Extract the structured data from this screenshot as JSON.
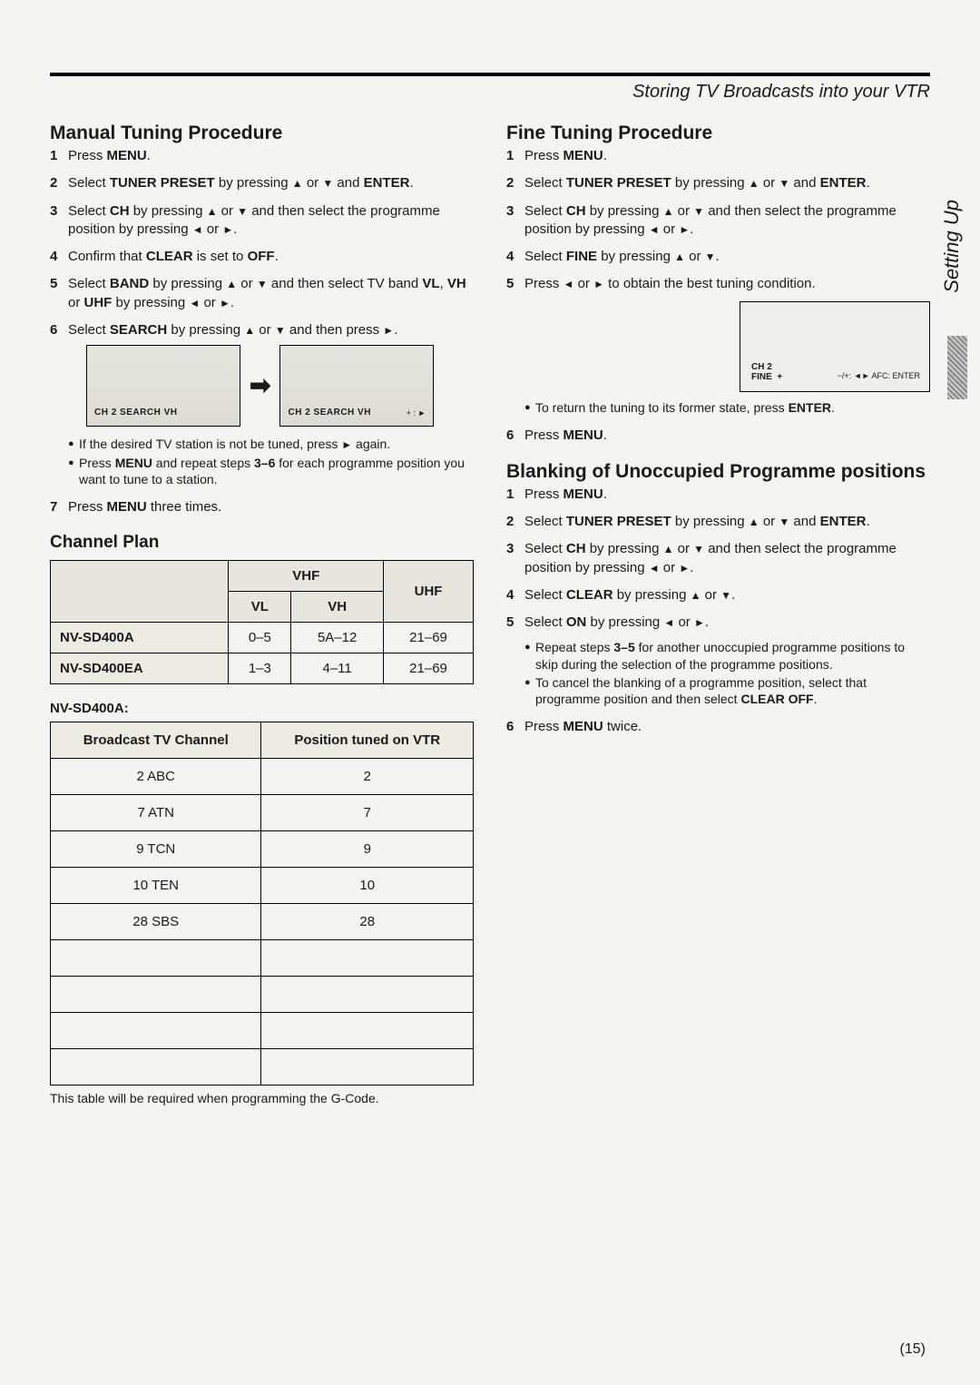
{
  "header": {
    "title": "Storing TV Broadcasts into your VTR"
  },
  "side_tab": "Setting Up",
  "page_number": "(15)",
  "left": {
    "manual": {
      "heading": "Manual Tuning Procedure",
      "steps": [
        "Press <b>MENU</b>.",
        "Select <b>TUNER PRESET</b> by pressing <span class='tri'>▲</span> or <span class='tri'>▼</span> and <b>ENTER</b>.",
        "Select <b>CH</b> by pressing <span class='tri'>▲</span> or <span class='tri'>▼</span> and then select the programme position by pressing <span class='tri'>◄</span> or <span class='tri'>►</span>.",
        "Confirm that <b>CLEAR</b> is set to <b>OFF</b>.",
        "Select <b>BAND</b> by pressing <span class='tri'>▲</span> or <span class='tri'>▼</span> and then select TV band <b>VL</b>, <b>VH</b> or <b>UHF</b> by pressing <span class='tri'>◄</span> or <span class='tri'>►</span>.",
        "Select <b>SEARCH</b> by pressing <span class='tri'>▲</span> or <span class='tri'>▼</span> and then press <span class='tri'>►</span>."
      ],
      "scr1": "CH 2   SEARCH  VH",
      "scr2_a": "CH 2   SEARCH  VH",
      "scr2_b": "+ : ►",
      "notes": [
        "If the desired TV station is not be tuned, press <span class='tri'>►</span> again.",
        "Press <b>MENU</b> and repeat steps <b>3–6</b> for each programme position you want to tune to a station."
      ],
      "step7": "Press <b>MENU</b> three times."
    },
    "channel_plan": {
      "heading": "Channel Plan",
      "headers": {
        "vhf": "VHF",
        "vl": "VL",
        "vh": "VH",
        "uhf": "UHF"
      },
      "rows": [
        {
          "model": "NV-SD400A",
          "vl": "0–5",
          "vh": "5A–12",
          "uhf": "21–69"
        },
        {
          "model": "NV-SD400EA",
          "vl": "1–3",
          "vh": "4–11",
          "uhf": "21–69"
        }
      ],
      "model_label": "NV-SD400A:",
      "bc_headers": {
        "a": "Broadcast TV Channel",
        "b": "Position tuned on VTR"
      },
      "bc_rows": [
        {
          "a": "2 ABC",
          "b": "2"
        },
        {
          "a": "7 ATN",
          "b": "7"
        },
        {
          "a": "9 TCN",
          "b": "9"
        },
        {
          "a": "10 TEN",
          "b": "10"
        },
        {
          "a": "28 SBS",
          "b": "28"
        },
        {
          "a": "",
          "b": ""
        },
        {
          "a": "",
          "b": ""
        },
        {
          "a": "",
          "b": ""
        },
        {
          "a": "",
          "b": ""
        }
      ],
      "note": "This table will be required when programming the G-Code."
    }
  },
  "right": {
    "fine": {
      "heading": "Fine Tuning Procedure",
      "steps": [
        "Press <b>MENU</b>.",
        "Select <b>TUNER PRESET</b> by pressing <span class='tri'>▲</span> or <span class='tri'>▼</span> and <b>ENTER</b>.",
        "Select <b>CH</b> by pressing <span class='tri'>▲</span> or <span class='tri'>▼</span> and then select the programme position by pressing <span class='tri'>◄</span> or <span class='tri'>►</span>.",
        "Select <b>FINE</b> by pressing <span class='tri'>▲</span> or <span class='tri'>▼</span>.",
        "Press <span class='tri'>◄</span> or <span class='tri'>►</span> to obtain the best tuning condition."
      ],
      "scr_a": "CH 2\nFINE  +",
      "scr_b": "−/+: ◄►   AFC: ENTER",
      "notes": [
        "To return the tuning to its former state, press <b>ENTER</b>."
      ],
      "step6": "Press <b>MENU</b>."
    },
    "blank": {
      "heading": "Blanking of Unoccupied Programme positions",
      "steps": [
        "Press <b>MENU</b>.",
        "Select <b>TUNER PRESET</b> by pressing <span class='tri'>▲</span> or <span class='tri'>▼</span> and <b>ENTER</b>.",
        "Select <b>CH</b> by pressing <span class='tri'>▲</span> or <span class='tri'>▼</span> and then select the programme position by pressing <span class='tri'>◄</span> or <span class='tri'>►</span>.",
        "Select <b>CLEAR</b> by pressing <span class='tri'>▲</span> or <span class='tri'>▼</span>.",
        "Select <b>ON</b> by pressing <span class='tri'>◄</span> or <span class='tri'>►</span>."
      ],
      "notes5": [
        "Repeat steps <b>3–5</b> for another unoccupied programme positions to skip during the selection of the programme positions.",
        "To cancel the blanking of a programme position, select that programme position and then select <b>CLEAR OFF</b>."
      ],
      "step6": "Press <b>MENU</b> twice."
    }
  }
}
